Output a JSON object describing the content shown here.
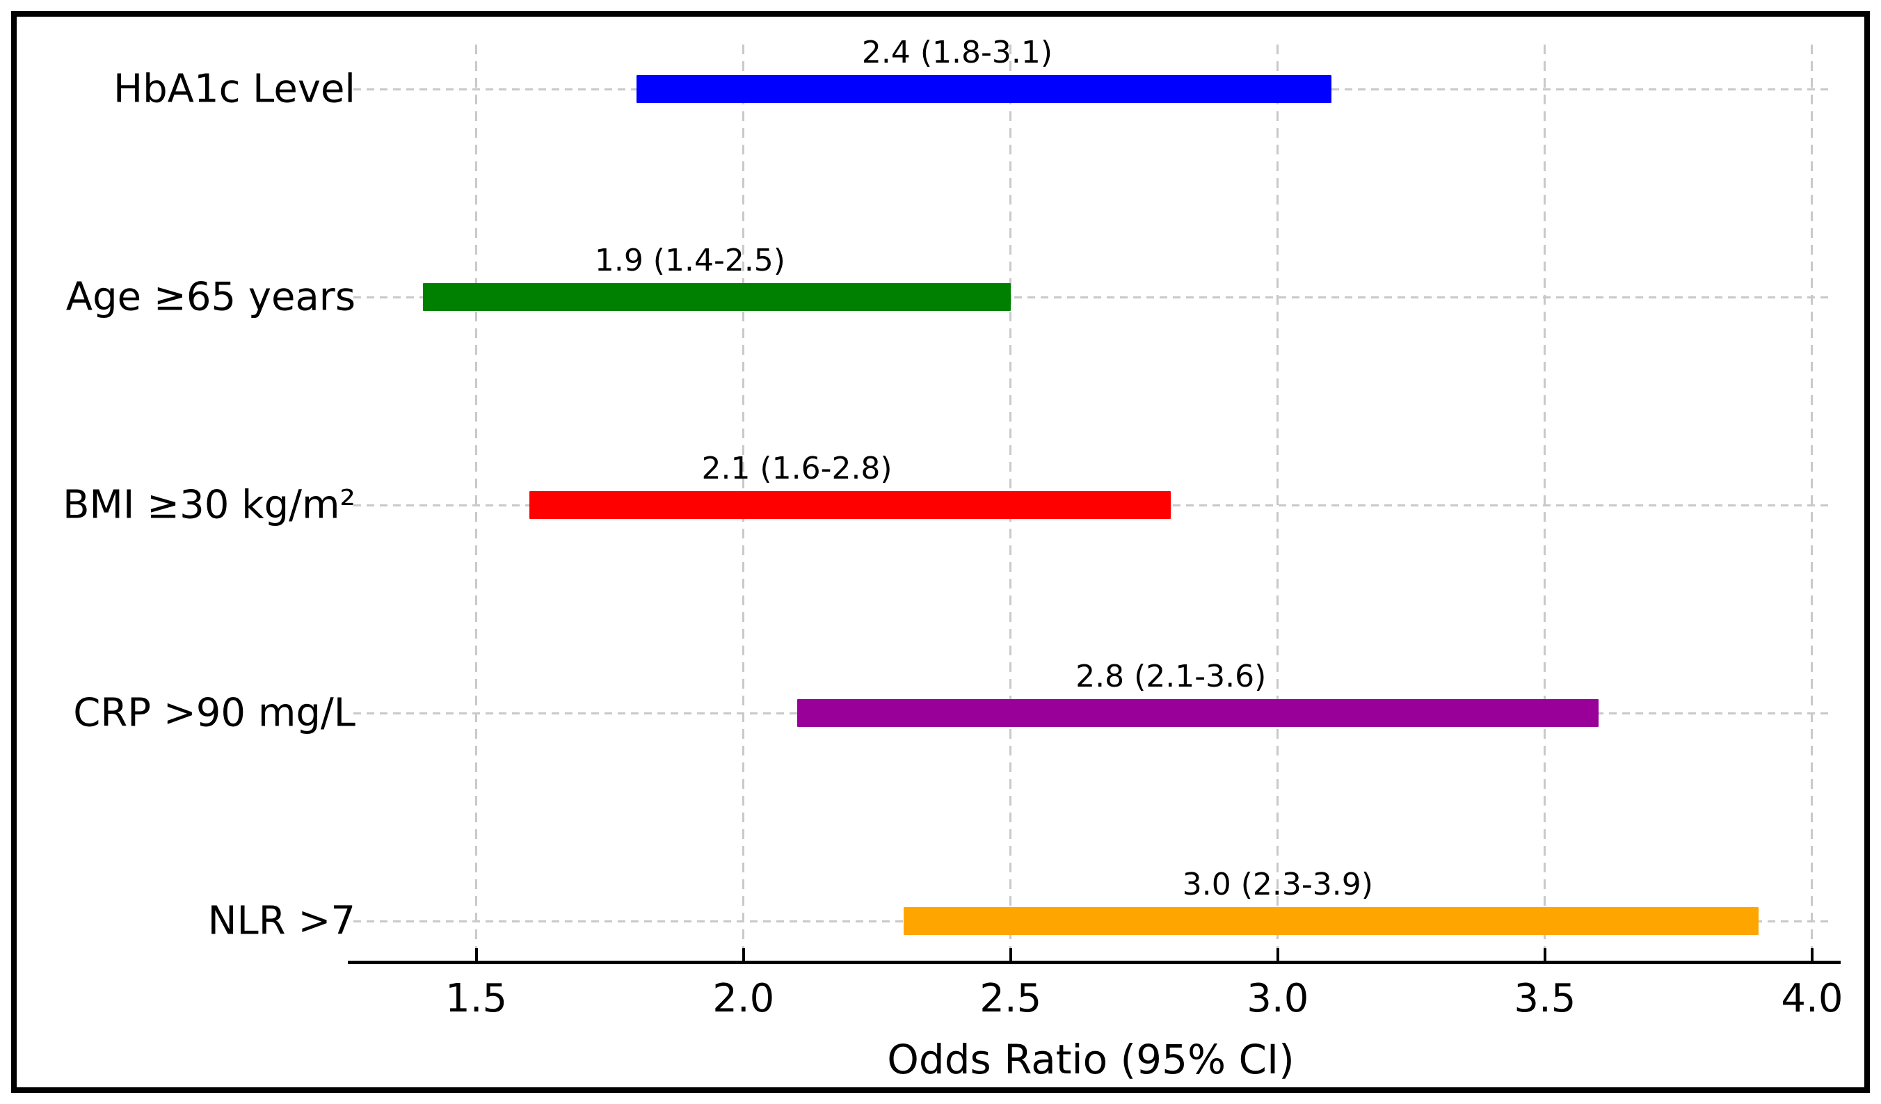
{
  "chart_data": {
    "type": "bar",
    "orientation": "horizontal",
    "title": "",
    "xlabel": "Odds Ratio (95% CI)",
    "ylabel": "",
    "categories": [
      "HbA1c Level",
      "Age ≥65 years",
      "BMI ≥30 kg/m²",
      "CRP >90 mg/L",
      "NLR >7"
    ],
    "bars": [
      {
        "label": "HbA1c Level",
        "odds_ratio": 2.4,
        "ci_low": 1.8,
        "ci_high": 3.1,
        "annotation": "2.4 (1.8-3.1)",
        "color": "#0000ff"
      },
      {
        "label": "Age ≥65 years",
        "odds_ratio": 1.9,
        "ci_low": 1.4,
        "ci_high": 2.5,
        "annotation": "1.9 (1.4-2.5)",
        "color": "#008000"
      },
      {
        "label": "BMI ≥30 kg/m²",
        "odds_ratio": 2.1,
        "ci_low": 1.6,
        "ci_high": 2.8,
        "annotation": "2.1 (1.6-2.8)",
        "color": "#ff0000"
      },
      {
        "label": "CRP >90 mg/L",
        "odds_ratio": 2.8,
        "ci_low": 2.1,
        "ci_high": 3.6,
        "annotation": "2.8 (2.1-3.6)",
        "color": "#990099"
      },
      {
        "label": "NLR >7",
        "odds_ratio": 3.0,
        "ci_low": 2.3,
        "ci_high": 3.9,
        "annotation": "3.0 (2.3-3.9)",
        "color": "#ffa500"
      }
    ],
    "xlim": [
      1.27,
      4.03
    ],
    "xticks": [
      {
        "value": 1.5,
        "label": "1.5"
      },
      {
        "value": 2.0,
        "label": "2.0"
      },
      {
        "value": 2.5,
        "label": "2.5"
      },
      {
        "value": 3.0,
        "label": "3.0"
      },
      {
        "value": 3.5,
        "label": "3.5"
      },
      {
        "value": 4.0,
        "label": "4.0"
      }
    ],
    "grid": true,
    "grid_style": "dashed",
    "grid_color": "#c9c9c9",
    "axis_color": "#000000",
    "frame_color": "#000000",
    "background_color": "#ffffff",
    "legend": null
  }
}
